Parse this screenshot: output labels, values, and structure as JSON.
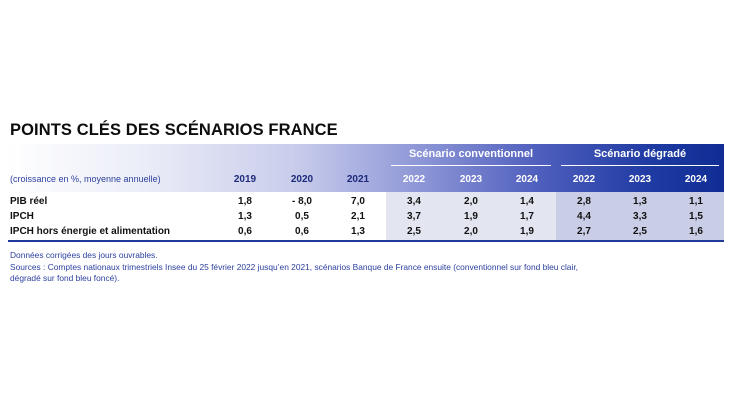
{
  "title": "POINTS CLÉS DES SCÉNARIOS FRANCE",
  "scenarios": {
    "conventionnel": "Scénario conventionnel",
    "degrade": "Scénario dégradé"
  },
  "unit_note": "(croissance en %, moyenne annuelle)",
  "years": [
    "2019",
    "2020",
    "2021",
    "2022",
    "2023",
    "2024",
    "2022",
    "2023",
    "2024"
  ],
  "rows": [
    {
      "label": "PIB réel",
      "values": [
        "1,8",
        "- 8,0",
        "7,0",
        "3,4",
        "2,0",
        "1,4",
        "2,8",
        "1,3",
        "1,1"
      ]
    },
    {
      "label": "IPCH",
      "values": [
        "1,3",
        "0,5",
        "2,1",
        "3,7",
        "1,9",
        "1,7",
        "4,4",
        "3,3",
        "1,5"
      ]
    },
    {
      "label": "IPCH hors énergie et alimentation",
      "values": [
        "0,6",
        "0,6",
        "1,3",
        "2,5",
        "2,0",
        "1,9",
        "2,7",
        "2,5",
        "1,6"
      ]
    }
  ],
  "footnotes": [
    "Données corrigées des jours ouvrables.",
    "Sources : Comptes nationaux trimestriels Insee du 25 février 2022 jusqu’en 2021, scénarios Banque de France ensuite (conventionnel sur fond bleu clair,",
    "dégradé sur fond bleu foncé)."
  ],
  "colors": {
    "band_dark": "#0f2d94",
    "conventionnel_bg": "#e3e5f1",
    "degrade_bg": "#c9cde5",
    "note_text": "#2b3f9e"
  }
}
